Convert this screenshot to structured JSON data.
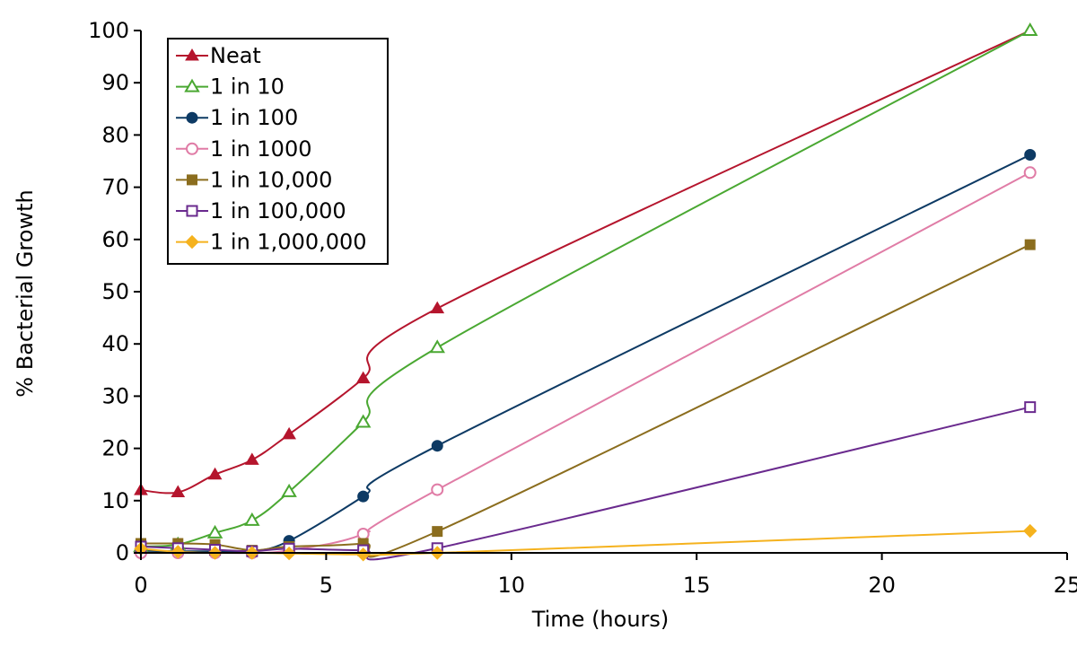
{
  "chart_data": {
    "type": "line",
    "xlabel": "Time (hours)",
    "ylabel": "% Bacterial Growth",
    "xlim": [
      0,
      25
    ],
    "ylim": [
      0,
      100
    ],
    "xticks": [
      0,
      5,
      10,
      15,
      20,
      25
    ],
    "yticks": [
      0,
      10,
      20,
      30,
      40,
      50,
      60,
      70,
      80,
      90,
      100
    ],
    "grid": false,
    "legend_position": "top-left",
    "x": [
      0,
      1,
      2,
      3,
      4,
      6,
      8,
      24
    ],
    "series": [
      {
        "name": "Neat",
        "color": "#b5152d",
        "marker": "triangle-filled",
        "values": [
          12,
          11.6,
          15,
          17.8,
          22.7,
          33.4,
          46.8,
          100
        ]
      },
      {
        "name": "1 in 10",
        "color": "#4aa832",
        "marker": "triangle-open",
        "values": [
          1.2,
          1.6,
          3.8,
          6.2,
          11.7,
          25,
          39.3,
          100
        ]
      },
      {
        "name": "1 in 100",
        "color": "#0d3a64",
        "marker": "circle-filled",
        "values": [
          0.4,
          0.3,
          0.3,
          0.3,
          2.3,
          10.8,
          20.5,
          76.2
        ]
      },
      {
        "name": "1 in 1000",
        "color": "#e07ca6",
        "marker": "circle-open",
        "values": [
          0,
          0,
          0,
          0,
          0.5,
          3.6,
          12.1,
          72.8
        ]
      },
      {
        "name": "1 in 10,000",
        "color": "#8b6d1e",
        "marker": "square-filled",
        "values": [
          1.8,
          1.8,
          1.6,
          0.5,
          1.2,
          1.8,
          4.1,
          59
        ]
      },
      {
        "name": "1 in 100,000",
        "color": "#6a2a8e",
        "marker": "square-open",
        "values": [
          1.2,
          0.9,
          0.6,
          0.3,
          0.8,
          0.5,
          0.9,
          27.9
        ]
      },
      {
        "name": "1 in 1,000,000",
        "color": "#f5b21e",
        "marker": "diamond-filled",
        "values": [
          0.8,
          0.2,
          0,
          0,
          -0.1,
          -0.3,
          0,
          4.2
        ]
      }
    ]
  }
}
